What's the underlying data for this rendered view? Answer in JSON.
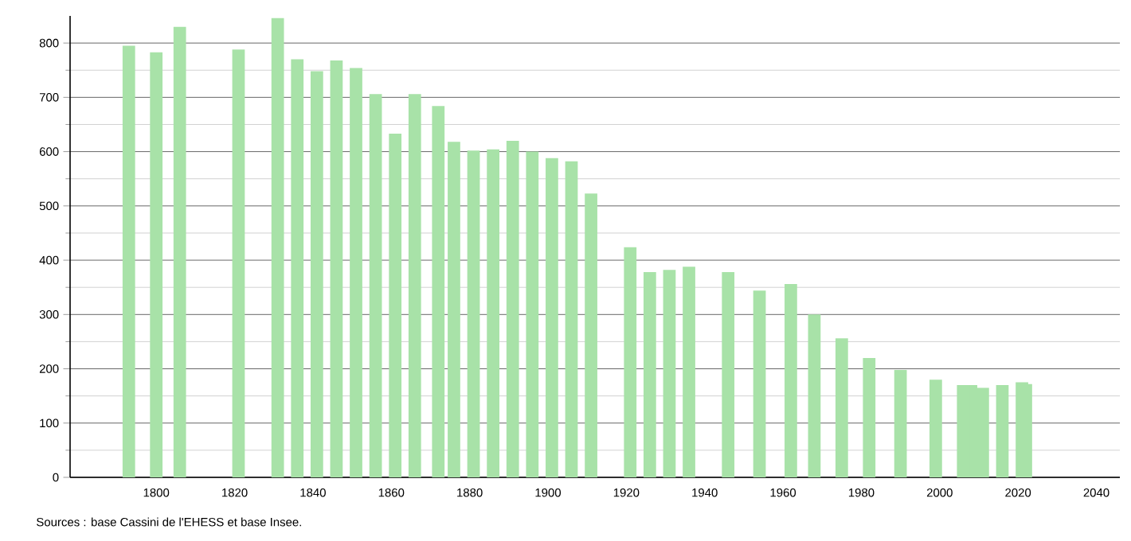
{
  "chart_data": {
    "type": "bar",
    "color": "#a8e2a8",
    "x": [
      1793,
      1800,
      1806,
      1821,
      1831,
      1836,
      1841,
      1846,
      1851,
      1856,
      1861,
      1866,
      1872,
      1876,
      1881,
      1886,
      1891,
      1896,
      1901,
      1906,
      1911,
      1921,
      1926,
      1931,
      1936,
      1946,
      1954,
      1962,
      1968,
      1975,
      1982,
      1990,
      1999,
      2006,
      2008,
      2011,
      2016,
      2021,
      2022
    ],
    "values": [
      795,
      783,
      830,
      788,
      846,
      770,
      748,
      768,
      754,
      706,
      633,
      706,
      684,
      618,
      602,
      604,
      620,
      600,
      588,
      582,
      523,
      424,
      378,
      382,
      388,
      378,
      344,
      356,
      300,
      256,
      220,
      198,
      180,
      170,
      170,
      165,
      170,
      175,
      172
    ],
    "xlim": [
      1778,
      2046
    ],
    "ylim": [
      0,
      850
    ],
    "xticks": [
      1800,
      1820,
      1840,
      1860,
      1880,
      1900,
      1920,
      1940,
      1960,
      1980,
      2000,
      2020,
      2040
    ],
    "yticks": [
      0,
      100,
      200,
      300,
      400,
      500,
      600,
      700,
      800
    ],
    "grid": "y",
    "annotations": [
      "Sources : base Cassini de l'EHESS et base Insee."
    ]
  }
}
